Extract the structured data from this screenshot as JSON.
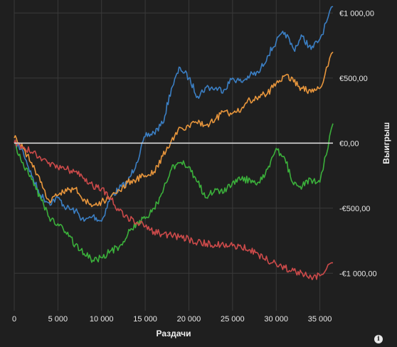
{
  "chart_data": {
    "type": "line",
    "xlabel": "Раздачи",
    "ylabel": "Выигрыш",
    "xlim": [
      0,
      36500
    ],
    "ylim": [
      -1250,
      1100
    ],
    "x_ticks": [
      0,
      5000,
      10000,
      15000,
      20000,
      25000,
      30000,
      35000
    ],
    "x_tick_labels": [
      "0",
      "5 000",
      "10 000",
      "15 000",
      "20 000",
      "25 000",
      "30 000",
      "35 000"
    ],
    "y_ticks": [
      1000,
      500,
      0,
      -500,
      -1000
    ],
    "y_tick_labels": [
      "€1 000,00",
      "€500,00",
      "€0,00",
      "-€500,00",
      "-€1 000,00"
    ],
    "grid": true,
    "zero_line": true,
    "series": [
      {
        "color": "#3b7fc4",
        "x": [
          0,
          1000,
          2000,
          3000,
          4000,
          5000,
          6000,
          7000,
          8000,
          9000,
          10000,
          11000,
          12000,
          13000,
          14000,
          15000,
          16000,
          17000,
          18000,
          19000,
          20000,
          21000,
          22000,
          23000,
          24000,
          25000,
          26000,
          27000,
          28000,
          29000,
          30000,
          31000,
          32000,
          33000,
          34000,
          35000,
          36500
        ],
        "y": [
          0,
          -60,
          -250,
          -400,
          -460,
          -420,
          -500,
          -520,
          -600,
          -560,
          -600,
          -420,
          -350,
          -300,
          -150,
          50,
          80,
          150,
          420,
          580,
          500,
          360,
          430,
          420,
          410,
          500,
          470,
          520,
          540,
          670,
          780,
          850,
          720,
          820,
          720,
          800,
          1050
        ]
      },
      {
        "color": "#e8963c",
        "x": [
          0,
          1000,
          2000,
          3000,
          4000,
          5000,
          6000,
          7000,
          8000,
          9000,
          10000,
          11000,
          12000,
          13000,
          14000,
          15000,
          16000,
          17000,
          18000,
          19000,
          20000,
          21000,
          22000,
          23000,
          24000,
          25000,
          26000,
          27000,
          28000,
          29000,
          30000,
          31000,
          32000,
          33000,
          34000,
          35000,
          36500
        ],
        "y": [
          40,
          -40,
          -150,
          -300,
          -440,
          -400,
          -370,
          -350,
          -430,
          -480,
          -450,
          -420,
          -360,
          -300,
          -280,
          -250,
          -220,
          -100,
          20,
          120,
          130,
          150,
          140,
          180,
          240,
          230,
          260,
          330,
          360,
          380,
          460,
          520,
          470,
          420,
          390,
          420,
          700
        ]
      },
      {
        "color": "#3bb03b",
        "x": [
          0,
          1000,
          2000,
          3000,
          4000,
          5000,
          6000,
          7000,
          8000,
          9000,
          10000,
          11000,
          12000,
          13000,
          14000,
          15000,
          16000,
          17000,
          18000,
          19000,
          20000,
          21000,
          22000,
          23000,
          24000,
          25000,
          26000,
          27000,
          28000,
          29000,
          30000,
          31000,
          32000,
          33000,
          34000,
          35000,
          36500
        ],
        "y": [
          0,
          -150,
          -280,
          -420,
          -570,
          -620,
          -700,
          -780,
          -850,
          -900,
          -880,
          -830,
          -800,
          -700,
          -620,
          -580,
          -500,
          -380,
          -200,
          -150,
          -180,
          -300,
          -420,
          -350,
          -380,
          -300,
          -280,
          -280,
          -300,
          -200,
          -40,
          -120,
          -320,
          -330,
          -280,
          -300,
          150
        ]
      },
      {
        "color": "#cc4a4a",
        "x": [
          0,
          1000,
          2000,
          3000,
          4000,
          5000,
          6000,
          7000,
          8000,
          9000,
          10000,
          11000,
          12000,
          13000,
          14000,
          15000,
          16000,
          17000,
          18000,
          19000,
          20000,
          21000,
          22000,
          23000,
          24000,
          25000,
          26000,
          27000,
          28000,
          29000,
          30000,
          31000,
          32000,
          33000,
          34000,
          35000,
          36500
        ],
        "y": [
          0,
          -30,
          -70,
          -110,
          -150,
          -190,
          -200,
          -220,
          -270,
          -330,
          -350,
          -420,
          -520,
          -570,
          -610,
          -640,
          -680,
          -700,
          -710,
          -720,
          -740,
          -760,
          -770,
          -780,
          -790,
          -790,
          -800,
          -820,
          -860,
          -900,
          -930,
          -960,
          -980,
          -1000,
          -1030,
          -1020,
          -920
        ]
      }
    ]
  },
  "info_glyph": "i"
}
